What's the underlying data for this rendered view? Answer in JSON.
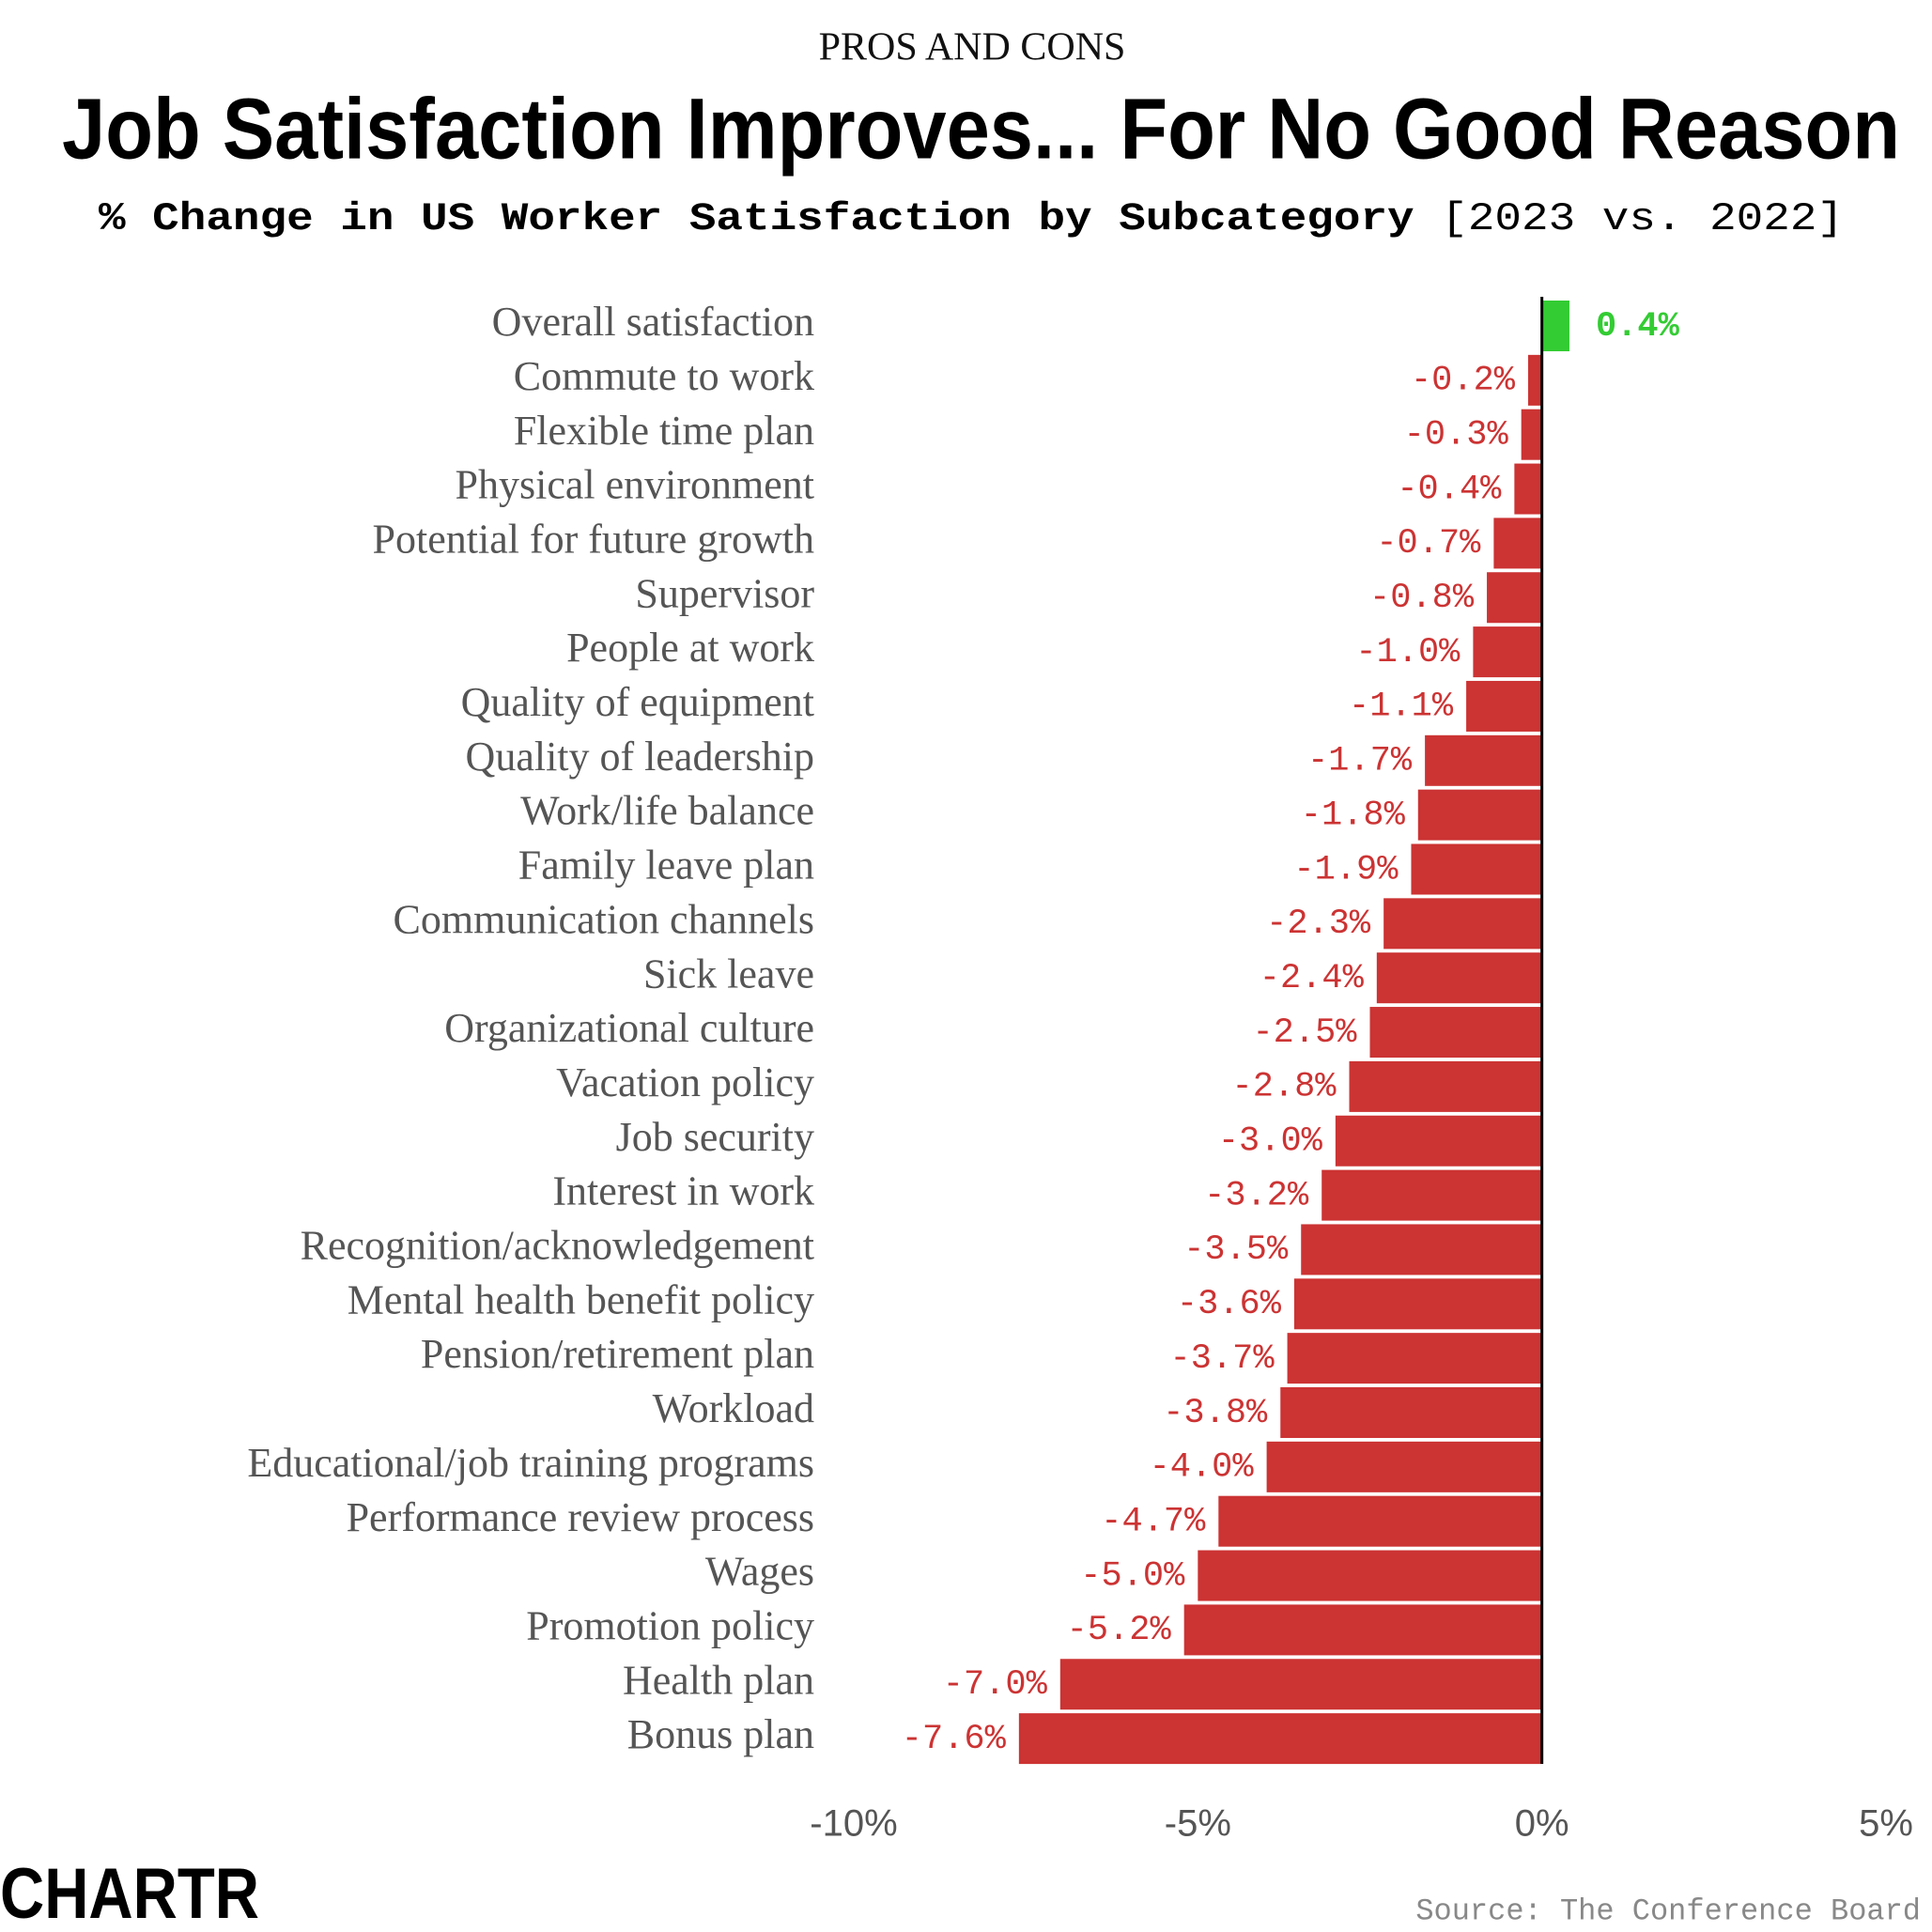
{
  "kicker": "PROS AND CONS",
  "brand": "CHARTR",
  "source": "Source: The Conference Board",
  "chart_data": {
    "type": "bar",
    "orientation": "horizontal",
    "title": "Job Satisfaction Improves... For No Good Reason",
    "subtitle": "% Change in US Worker Satisfaction by Subcategory",
    "subtitle_note": "[2023 vs. 2022]",
    "categories": [
      "Overall satisfaction",
      "Commute to work",
      "Flexible time plan",
      "Physical environment",
      "Potential for future growth",
      "Supervisor",
      "People at work",
      "Quality of equipment",
      "Quality of leadership",
      "Work/life balance",
      "Family leave plan",
      "Communication channels",
      "Sick leave",
      "Organizational culture",
      "Vacation policy",
      "Job security",
      "Interest in work",
      "Recognition/acknowledgement",
      "Mental health benefit policy",
      "Pension/retirement plan",
      "Workload",
      "Educational/job training programs",
      "Performance review process",
      "Wages",
      "Promotion policy",
      "Health plan",
      "Bonus plan"
    ],
    "values": [
      0.4,
      -0.2,
      -0.3,
      -0.4,
      -0.7,
      -0.8,
      -1.0,
      -1.1,
      -1.7,
      -1.8,
      -1.9,
      -2.3,
      -2.4,
      -2.5,
      -2.8,
      -3.0,
      -3.2,
      -3.5,
      -3.6,
      -3.7,
      -3.8,
      -4.0,
      -4.7,
      -5.0,
      -5.2,
      -7.0,
      -7.6
    ],
    "value_labels": [
      "0.4%",
      "-0.2%",
      "-0.3%",
      "-0.4%",
      "-0.7%",
      "-0.8%",
      "-1.0%",
      "-1.1%",
      "-1.7%",
      "-1.8%",
      "-1.9%",
      "-2.3%",
      "-2.4%",
      "-2.5%",
      "-2.8%",
      "-3.0%",
      "-3.2%",
      "-3.5%",
      "-3.6%",
      "-3.7%",
      "-3.8%",
      "-4.0%",
      "-4.7%",
      "-5.0%",
      "-5.2%",
      "-7.0%",
      "-7.6%"
    ],
    "colors": [
      "#33cc33",
      "#cc3333",
      "#cc3333",
      "#cc3333",
      "#cc3333",
      "#cc3333",
      "#cc3333",
      "#cc3333",
      "#cc3333",
      "#cc3333",
      "#cc3333",
      "#cc3333",
      "#cc3333",
      "#cc3333",
      "#cc3333",
      "#cc3333",
      "#cc3333",
      "#cc3333",
      "#cc3333",
      "#cc3333",
      "#cc3333",
      "#cc3333",
      "#cc3333",
      "#cc3333",
      "#cc3333",
      "#cc3333",
      "#cc3333"
    ],
    "xlim": [
      -10,
      5
    ],
    "xticks": [
      {
        "value": -10,
        "label": "-10%"
      },
      {
        "value": -5,
        "label": "-5%"
      },
      {
        "value": 0,
        "label": "0%"
      },
      {
        "value": 5,
        "label": "5%"
      }
    ],
    "grid": false
  }
}
